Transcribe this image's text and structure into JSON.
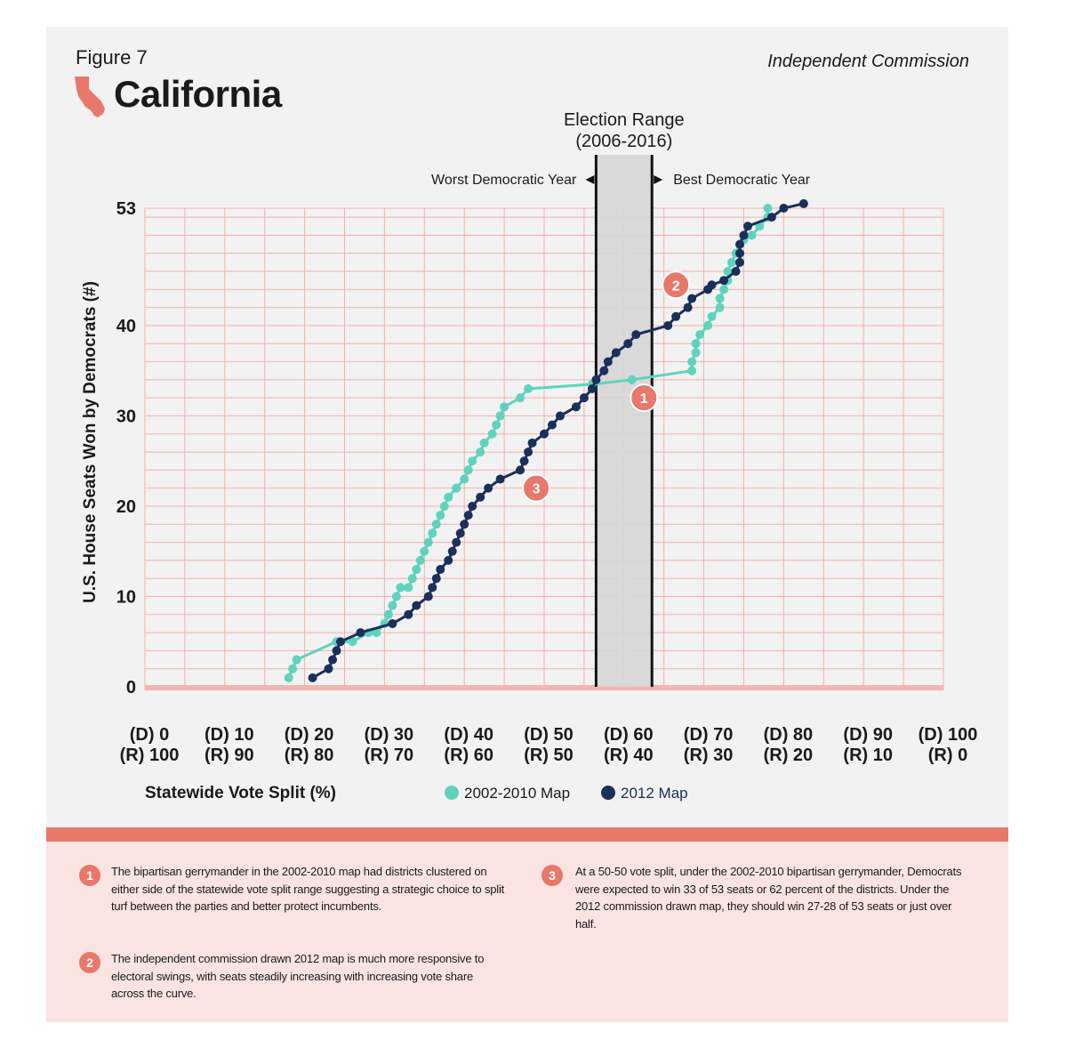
{
  "figure_label": "Figure 7",
  "state": "California",
  "header_right": "Independent Commission",
  "chart_data": {
    "type": "line",
    "xlabel": "Statewide Vote Split (%)",
    "ylabel": "U.S. House Seats Won by Democrats (#)",
    "xlim": [
      0,
      100
    ],
    "ylim": [
      0,
      53
    ],
    "y_ticks": [
      0,
      10,
      20,
      30,
      40,
      53
    ],
    "x_tick_labels": [
      {
        "d": "(D) 0",
        "r": "(R) 100"
      },
      {
        "d": "(D) 10",
        "r": "(R) 90"
      },
      {
        "d": "(D) 20",
        "r": "(R) 80"
      },
      {
        "d": "(D) 30",
        "r": "(R) 70"
      },
      {
        "d": "(D) 40",
        "r": "(R) 60"
      },
      {
        "d": "(D) 50",
        "r": "(R) 50"
      },
      {
        "d": "(D) 60",
        "r": "(R) 40"
      },
      {
        "d": "(D) 70",
        "r": "(R) 30"
      },
      {
        "d": "(D) 80",
        "r": "(R) 20"
      },
      {
        "d": "(D) 90",
        "r": "(R) 10"
      },
      {
        "d": "(D) 100",
        "r": "(R) 0"
      }
    ],
    "grid": true,
    "election_range": {
      "title_line1": "Election Range",
      "title_line2": "(2006-2016)",
      "x_start": 56.5,
      "x_end": 63.5,
      "left_label": "Worst Democratic Year",
      "right_label": "Best Democratic Year"
    },
    "legend_position": "bottom",
    "series": [
      {
        "name": "2002-2010 Map",
        "color": "#5fd3bc",
        "points": [
          [
            18,
            1
          ],
          [
            18.5,
            2
          ],
          [
            19,
            3
          ],
          [
            24,
            5
          ],
          [
            26,
            5
          ],
          [
            28,
            6
          ],
          [
            29,
            6
          ],
          [
            30,
            7
          ],
          [
            30.5,
            8
          ],
          [
            31,
            9
          ],
          [
            31.5,
            10
          ],
          [
            32,
            11
          ],
          [
            33,
            11
          ],
          [
            33.5,
            12
          ],
          [
            34,
            13
          ],
          [
            34.5,
            14
          ],
          [
            35,
            15
          ],
          [
            35.5,
            16
          ],
          [
            36,
            17
          ],
          [
            36.5,
            18
          ],
          [
            37,
            19
          ],
          [
            37.5,
            20
          ],
          [
            38,
            21
          ],
          [
            39,
            22
          ],
          [
            40,
            23
          ],
          [
            40.5,
            24
          ],
          [
            41,
            25
          ],
          [
            42,
            26
          ],
          [
            42.5,
            27
          ],
          [
            43.5,
            28
          ],
          [
            44,
            29
          ],
          [
            44.5,
            30
          ],
          [
            45,
            31
          ],
          [
            47,
            32
          ],
          [
            48,
            33
          ],
          [
            56,
            33.5
          ],
          [
            61,
            34
          ],
          [
            68.5,
            35
          ],
          [
            68.5,
            36
          ],
          [
            69,
            37
          ],
          [
            69,
            38
          ],
          [
            69.5,
            39
          ],
          [
            70.5,
            40
          ],
          [
            71,
            41
          ],
          [
            72,
            42
          ],
          [
            72,
            43
          ],
          [
            72.5,
            44
          ],
          [
            73,
            45
          ],
          [
            73,
            46
          ],
          [
            73.5,
            47
          ],
          [
            74,
            48
          ],
          [
            74.5,
            49
          ],
          [
            75,
            49.5
          ],
          [
            76,
            50
          ],
          [
            77,
            51
          ],
          [
            78,
            52
          ],
          [
            78,
            53
          ]
        ]
      },
      {
        "name": "2012 Map",
        "color": "#1b2f5b",
        "points": [
          [
            21,
            1
          ],
          [
            23,
            2
          ],
          [
            23.5,
            3
          ],
          [
            24,
            4
          ],
          [
            24.5,
            5
          ],
          [
            27,
            6
          ],
          [
            31,
            7
          ],
          [
            33,
            8
          ],
          [
            34,
            9
          ],
          [
            35.5,
            10
          ],
          [
            36,
            11
          ],
          [
            36.5,
            12
          ],
          [
            37,
            13
          ],
          [
            38,
            14
          ],
          [
            38.5,
            15
          ],
          [
            39,
            16
          ],
          [
            39.5,
            17
          ],
          [
            40,
            18
          ],
          [
            40.5,
            19
          ],
          [
            41,
            20
          ],
          [
            42,
            21
          ],
          [
            43,
            22
          ],
          [
            44.5,
            23
          ],
          [
            47,
            24
          ],
          [
            47.5,
            25
          ],
          [
            48,
            26
          ],
          [
            48.5,
            27
          ],
          [
            50,
            28
          ],
          [
            51,
            29
          ],
          [
            52,
            30
          ],
          [
            54,
            31
          ],
          [
            55,
            32
          ],
          [
            56,
            33
          ],
          [
            56.5,
            34
          ],
          [
            57.5,
            35
          ],
          [
            58,
            36
          ],
          [
            59,
            37
          ],
          [
            60.5,
            38
          ],
          [
            61.5,
            39
          ],
          [
            65.5,
            40
          ],
          [
            66.5,
            41
          ],
          [
            68,
            42
          ],
          [
            68.5,
            43
          ],
          [
            70.5,
            44
          ],
          [
            71,
            44.5
          ],
          [
            72.5,
            45
          ],
          [
            74,
            46
          ],
          [
            74.5,
            47
          ],
          [
            74.5,
            48
          ],
          [
            74.5,
            49
          ],
          [
            75,
            50
          ],
          [
            75.5,
            51
          ],
          [
            78.5,
            52
          ],
          [
            80,
            53
          ],
          [
            82.5,
            53.5
          ]
        ]
      }
    ],
    "annotations": [
      {
        "number": "1",
        "x": 62.5,
        "y": 32
      },
      {
        "number": "2",
        "x": 66.5,
        "y": 44.5
      },
      {
        "number": "3",
        "x": 49,
        "y": 22
      }
    ]
  },
  "notes": [
    {
      "number": "1",
      "text": "The bipartisan gerrymander in the 2002-2010 map had districts clustered on either side of the statewide vote split range suggesting a strategic choice to split turf between the parties and better protect incumbents."
    },
    {
      "number": "2",
      "text": "The independent commission drawn 2012 map is much more responsive to electoral swings, with seats steadily increasing with increasing vote share across the curve."
    },
    {
      "number": "3",
      "text": "At a 50-50 vote split, under the 2002-2010 bipartisan gerrymander, Democrats were expected to win 33 of 53 seats or 62 percent of the districts. Under the 2012 commission drawn map, they should win 27-28 of 53 seats or just over half."
    }
  ]
}
